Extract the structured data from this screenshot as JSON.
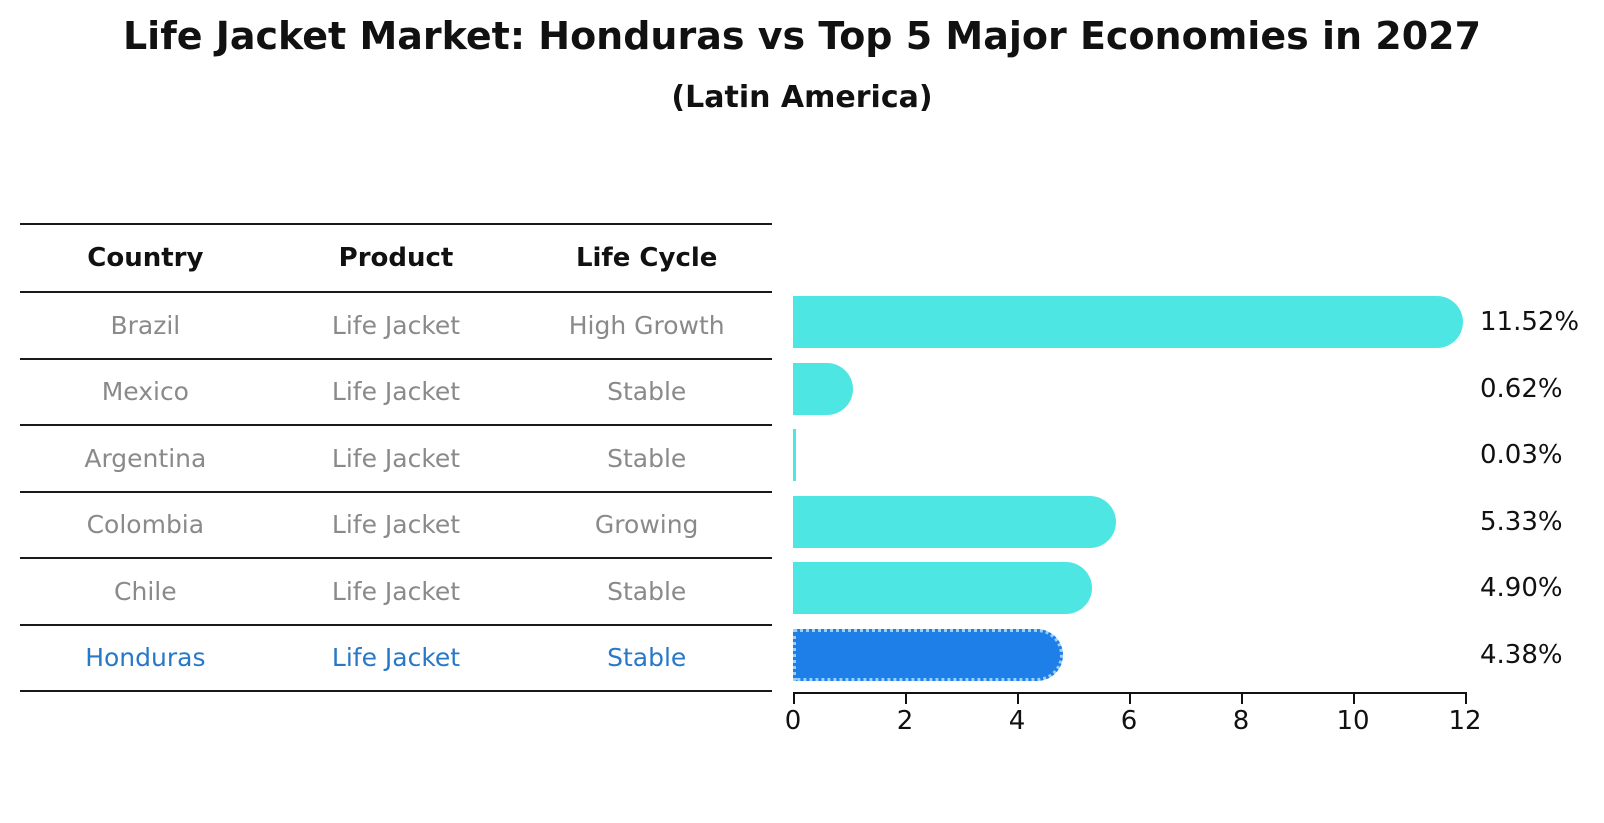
{
  "title": "Life Jacket Market: Honduras vs Top 5 Major Economies in 2027",
  "subtitle": "(Latin America)",
  "table": {
    "headers": [
      "Country",
      "Product",
      "Life Cycle"
    ],
    "rows": [
      {
        "country": "Brazil",
        "product": "Life Jacket",
        "life_cycle": "High Growth"
      },
      {
        "country": "Mexico",
        "product": "Life Jacket",
        "life_cycle": "Stable"
      },
      {
        "country": "Argentina",
        "product": "Life Jacket",
        "life_cycle": "Stable"
      },
      {
        "country": "Colombia",
        "product": "Life Jacket",
        "life_cycle": "Growing"
      },
      {
        "country": "Chile",
        "product": "Life Jacket",
        "life_cycle": "Stable"
      },
      {
        "country": "Honduras",
        "product": "Life Jacket",
        "life_cycle": "Stable"
      }
    ]
  },
  "chart_data": {
    "type": "bar",
    "orientation": "horizontal",
    "categories": [
      "Brazil",
      "Mexico",
      "Argentina",
      "Colombia",
      "Chile",
      "Honduras"
    ],
    "values": [
      11.52,
      0.62,
      0.03,
      5.33,
      4.9,
      4.38
    ],
    "labels": [
      "11.52%",
      "0.62%",
      "0.03%",
      "5.33%",
      "4.90%",
      "4.38%"
    ],
    "xticks": [
      "0",
      "2",
      "4",
      "6",
      "8",
      "10",
      "12"
    ],
    "xlim": [
      0,
      12
    ],
    "grid": false,
    "legend": false,
    "bar_color": "#4DE6E3",
    "highlight_index": 5,
    "highlight_color": "#1E7FE8",
    "highlight_border_color": "#9CD0F5",
    "highlight_text_color": "#2878C8"
  }
}
